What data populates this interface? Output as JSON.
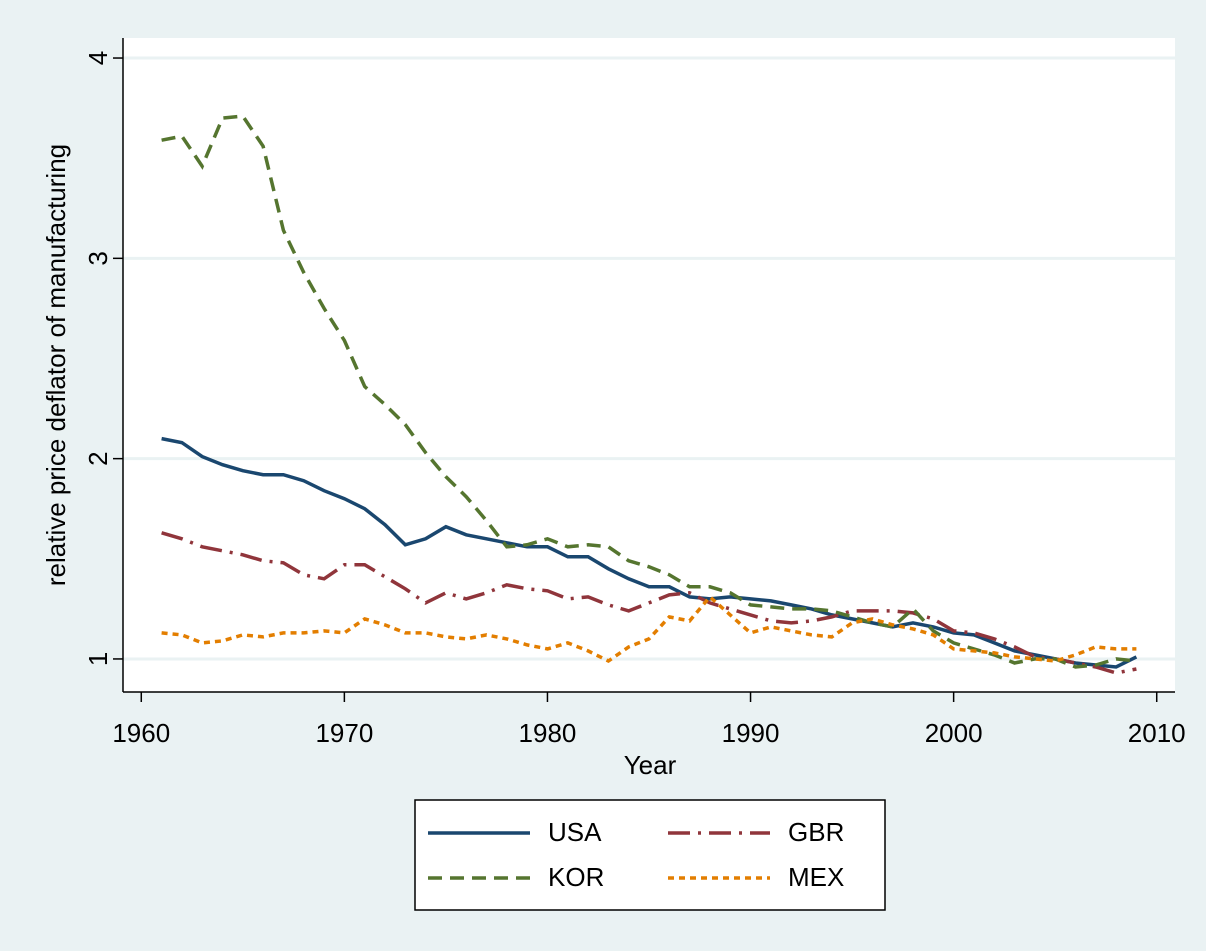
{
  "chart_data": {
    "type": "line",
    "x_label": "Year",
    "y_label": "relative price deflator of manufacturing",
    "x": [
      1961,
      1962,
      1963,
      1964,
      1965,
      1966,
      1967,
      1968,
      1969,
      1970,
      1971,
      1972,
      1973,
      1974,
      1975,
      1976,
      1977,
      1978,
      1979,
      1980,
      1981,
      1982,
      1983,
      1984,
      1985,
      1986,
      1987,
      1988,
      1989,
      1990,
      1991,
      1992,
      1993,
      1994,
      1995,
      1996,
      1997,
      1998,
      1999,
      2000,
      2001,
      2002,
      2003,
      2004,
      2005,
      2006,
      2007,
      2008,
      2009
    ],
    "series": [
      {
        "name": "USA",
        "color": "#1a476f",
        "line_style": "solid",
        "values": [
          2.1,
          2.08,
          2.01,
          1.97,
          1.94,
          1.92,
          1.92,
          1.89,
          1.84,
          1.8,
          1.75,
          1.67,
          1.57,
          1.6,
          1.66,
          1.62,
          1.6,
          1.58,
          1.56,
          1.56,
          1.51,
          1.51,
          1.45,
          1.4,
          1.36,
          1.36,
          1.31,
          1.3,
          1.31,
          1.3,
          1.29,
          1.27,
          1.25,
          1.22,
          1.2,
          1.18,
          1.16,
          1.18,
          1.16,
          1.13,
          1.12,
          1.08,
          1.04,
          1.02,
          1.0,
          0.98,
          0.97,
          0.96,
          1.01
        ]
      },
      {
        "name": "GBR",
        "color": "#90353b",
        "line_style": "longdash-dot",
        "values": [
          1.63,
          1.6,
          1.56,
          1.54,
          1.52,
          1.49,
          1.48,
          1.42,
          1.4,
          1.47,
          1.47,
          1.41,
          1.35,
          1.28,
          1.33,
          1.3,
          1.33,
          1.37,
          1.35,
          1.34,
          1.3,
          1.31,
          1.27,
          1.24,
          1.28,
          1.32,
          1.33,
          1.28,
          1.25,
          1.22,
          1.19,
          1.18,
          1.19,
          1.21,
          1.24,
          1.24,
          1.24,
          1.23,
          1.2,
          1.14,
          1.13,
          1.1,
          1.06,
          1.01,
          1.0,
          0.98,
          0.96,
          0.93,
          0.95
        ]
      },
      {
        "name": "KOR",
        "color": "#55752f",
        "line_style": "dash",
        "values": [
          3.59,
          3.61,
          3.46,
          3.7,
          3.71,
          3.56,
          3.14,
          2.93,
          2.75,
          2.59,
          2.36,
          2.27,
          2.17,
          2.03,
          1.91,
          1.81,
          1.69,
          1.56,
          1.57,
          1.6,
          1.56,
          1.57,
          1.56,
          1.49,
          1.46,
          1.42,
          1.36,
          1.36,
          1.33,
          1.27,
          1.26,
          1.25,
          1.25,
          1.24,
          1.21,
          1.18,
          1.16,
          1.25,
          1.14,
          1.08,
          1.05,
          1.02,
          0.98,
          1.0,
          1.0,
          0.96,
          0.97,
          1.0,
          0.99
        ]
      },
      {
        "name": "MEX",
        "color": "#e37e00",
        "line_style": "shortdash",
        "values": [
          1.13,
          1.12,
          1.08,
          1.09,
          1.12,
          1.11,
          1.13,
          1.13,
          1.14,
          1.13,
          1.2,
          1.17,
          1.13,
          1.13,
          1.11,
          1.1,
          1.12,
          1.1,
          1.07,
          1.05,
          1.08,
          1.04,
          0.99,
          1.06,
          1.1,
          1.21,
          1.19,
          1.31,
          1.22,
          1.13,
          1.16,
          1.14,
          1.12,
          1.11,
          1.18,
          1.2,
          1.17,
          1.15,
          1.12,
          1.05,
          1.04,
          1.03,
          1.01,
          1.0,
          0.99,
          1.02,
          1.06,
          1.05,
          1.05
        ]
      }
    ],
    "xlim": [
      1959.1,
      2010.9
    ],
    "xticks": [
      1960,
      1970,
      1980,
      1990,
      2000,
      2010
    ],
    "ylim": [
      0.835,
      4.1
    ],
    "yticks": [
      1,
      2,
      3,
      4
    ],
    "grid": true,
    "legend": "bottom"
  }
}
